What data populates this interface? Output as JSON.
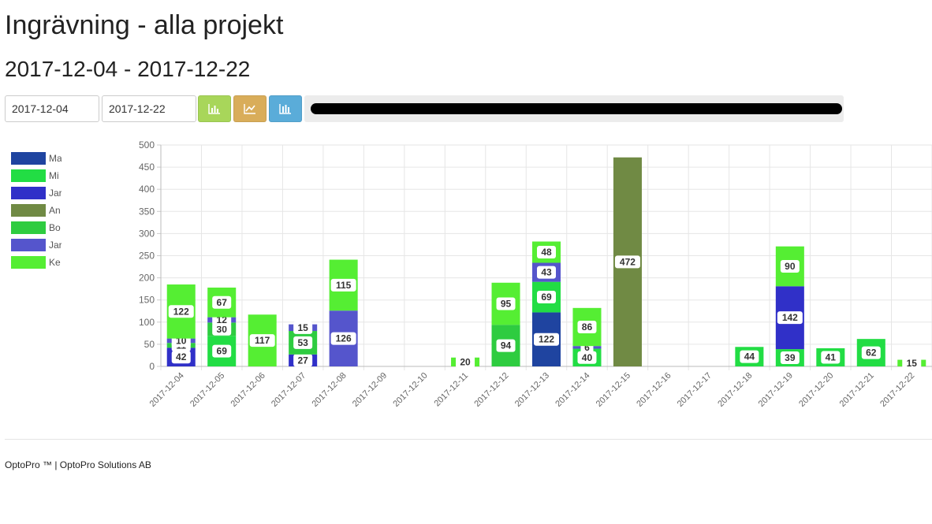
{
  "page": {
    "title": "Ingrävning - alla projekt",
    "subtitle": "2017-12-04 - 2017-12-22"
  },
  "controls": {
    "from_date": "2017-12-04",
    "to_date": "2017-12-22",
    "buttons": [
      {
        "name": "bar-chart-button",
        "icon": "bar-chart-icon",
        "color": "#a8d65a"
      },
      {
        "name": "line-chart-button",
        "icon": "line-chart-icon",
        "color": "#d9ad5a"
      },
      {
        "name": "stacked-chart-button",
        "icon": "bar-chart-icon",
        "color": "#5aacd9"
      }
    ]
  },
  "legend": [
    {
      "label": "Ma",
      "color": "#1f44a0"
    },
    {
      "label": "Mi",
      "color": "#22dd44"
    },
    {
      "label": "Jar",
      "color": "#3030c8"
    },
    {
      "label": "An",
      "color": "#708a44"
    },
    {
      "label": "Bo",
      "color": "#2ecc40"
    },
    {
      "label": "Jar",
      "color": "#5555cc"
    },
    {
      "label": "Ke",
      "color": "#55ee33"
    }
  ],
  "chart_data": {
    "type": "bar",
    "stacked": true,
    "ylim": [
      0,
      500
    ],
    "yticks": [
      0,
      50,
      100,
      150,
      200,
      250,
      300,
      350,
      400,
      450,
      500
    ],
    "grid": true,
    "categories": [
      "2017-12-04",
      "2017-12-05",
      "2017-12-06",
      "2017-12-07",
      "2017-12-08",
      "2017-12-09",
      "2017-12-10",
      "2017-12-11",
      "2017-12-12",
      "2017-12-13",
      "2017-12-14",
      "2017-12-15",
      "2017-12-16",
      "2017-12-17",
      "2017-12-18",
      "2017-12-19",
      "2017-12-20",
      "2017-12-21",
      "2017-12-22"
    ],
    "series": [
      {
        "name": "Ma",
        "color": "#1f44a0",
        "values": [
          0,
          0,
          0,
          0,
          0,
          0,
          0,
          0,
          0,
          122,
          0,
          0,
          0,
          0,
          0,
          0,
          0,
          0,
          0
        ]
      },
      {
        "name": "Mi",
        "color": "#22dd44",
        "values": [
          0,
          69,
          0,
          0,
          0,
          0,
          0,
          0,
          0,
          69,
          40,
          0,
          0,
          0,
          44,
          39,
          41,
          62,
          0
        ]
      },
      {
        "name": "Jar",
        "color": "#3030c8",
        "values": [
          42,
          0,
          0,
          27,
          0,
          0,
          0,
          0,
          0,
          0,
          0,
          0,
          0,
          0,
          0,
          142,
          0,
          0,
          0
        ]
      },
      {
        "name": "An",
        "color": "#708a44",
        "values": [
          0,
          0,
          0,
          0,
          0,
          0,
          0,
          0,
          0,
          0,
          0,
          472,
          0,
          0,
          0,
          0,
          0,
          0,
          0
        ]
      },
      {
        "name": "Bo",
        "color": "#2ecc40",
        "values": [
          11,
          30,
          0,
          53,
          0,
          0,
          0,
          0,
          94,
          0,
          0,
          0,
          0,
          0,
          0,
          0,
          0,
          0,
          0
        ]
      },
      {
        "name": "Jar",
        "color": "#5555cc",
        "values": [
          10,
          12,
          0,
          15,
          126,
          0,
          0,
          0,
          0,
          43,
          6,
          0,
          0,
          0,
          0,
          0,
          0,
          0,
          0
        ]
      },
      {
        "name": "Ke",
        "color": "#55ee33",
        "values": [
          122,
          67,
          117,
          0,
          115,
          0,
          0,
          20,
          95,
          48,
          86,
          0,
          0,
          0,
          0,
          90,
          0,
          0,
          15
        ]
      }
    ]
  },
  "footer": {
    "text": "OptoPro ™  |   OptoPro Solutions AB"
  }
}
